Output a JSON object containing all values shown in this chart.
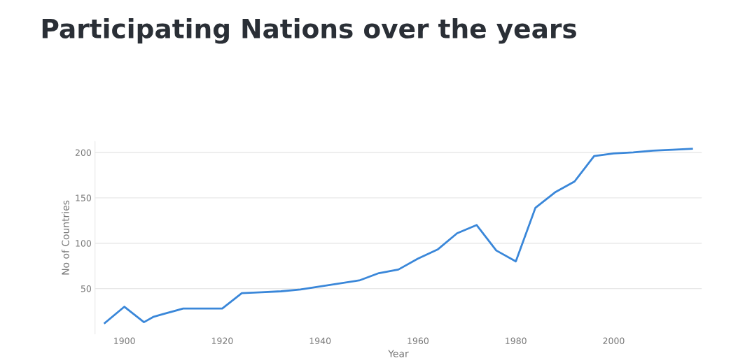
{
  "chart_data": {
    "type": "line",
    "title": "Participating Nations over the years",
    "xlabel": "Year",
    "ylabel": "No of Countries",
    "x": [
      1896,
      1900,
      1904,
      1906,
      1908,
      1912,
      1920,
      1924,
      1928,
      1932,
      1936,
      1948,
      1952,
      1956,
      1960,
      1964,
      1968,
      1972,
      1976,
      1980,
      1984,
      1988,
      1992,
      1996,
      2000,
      2004,
      2008,
      2012,
      2016
    ],
    "series": [
      {
        "color": "#3a87d9",
        "values": [
          12,
          30,
          13,
          19,
          22,
          28,
          28,
          45,
          46,
          47,
          49,
          59,
          67,
          71,
          83,
          93,
          111,
          120,
          92,
          80,
          139,
          156,
          168,
          196,
          199,
          200,
          202,
          203,
          204
        ]
      }
    ],
    "xlim": [
      1894,
      2018
    ],
    "xticks": [
      1900,
      1920,
      1940,
      1960,
      1980,
      2000
    ],
    "ylim": [
      0,
      212
    ],
    "yticks": [
      50,
      100,
      150,
      200
    ],
    "grid": "y",
    "legend": false,
    "marker": "none",
    "line_style": "solid"
  }
}
